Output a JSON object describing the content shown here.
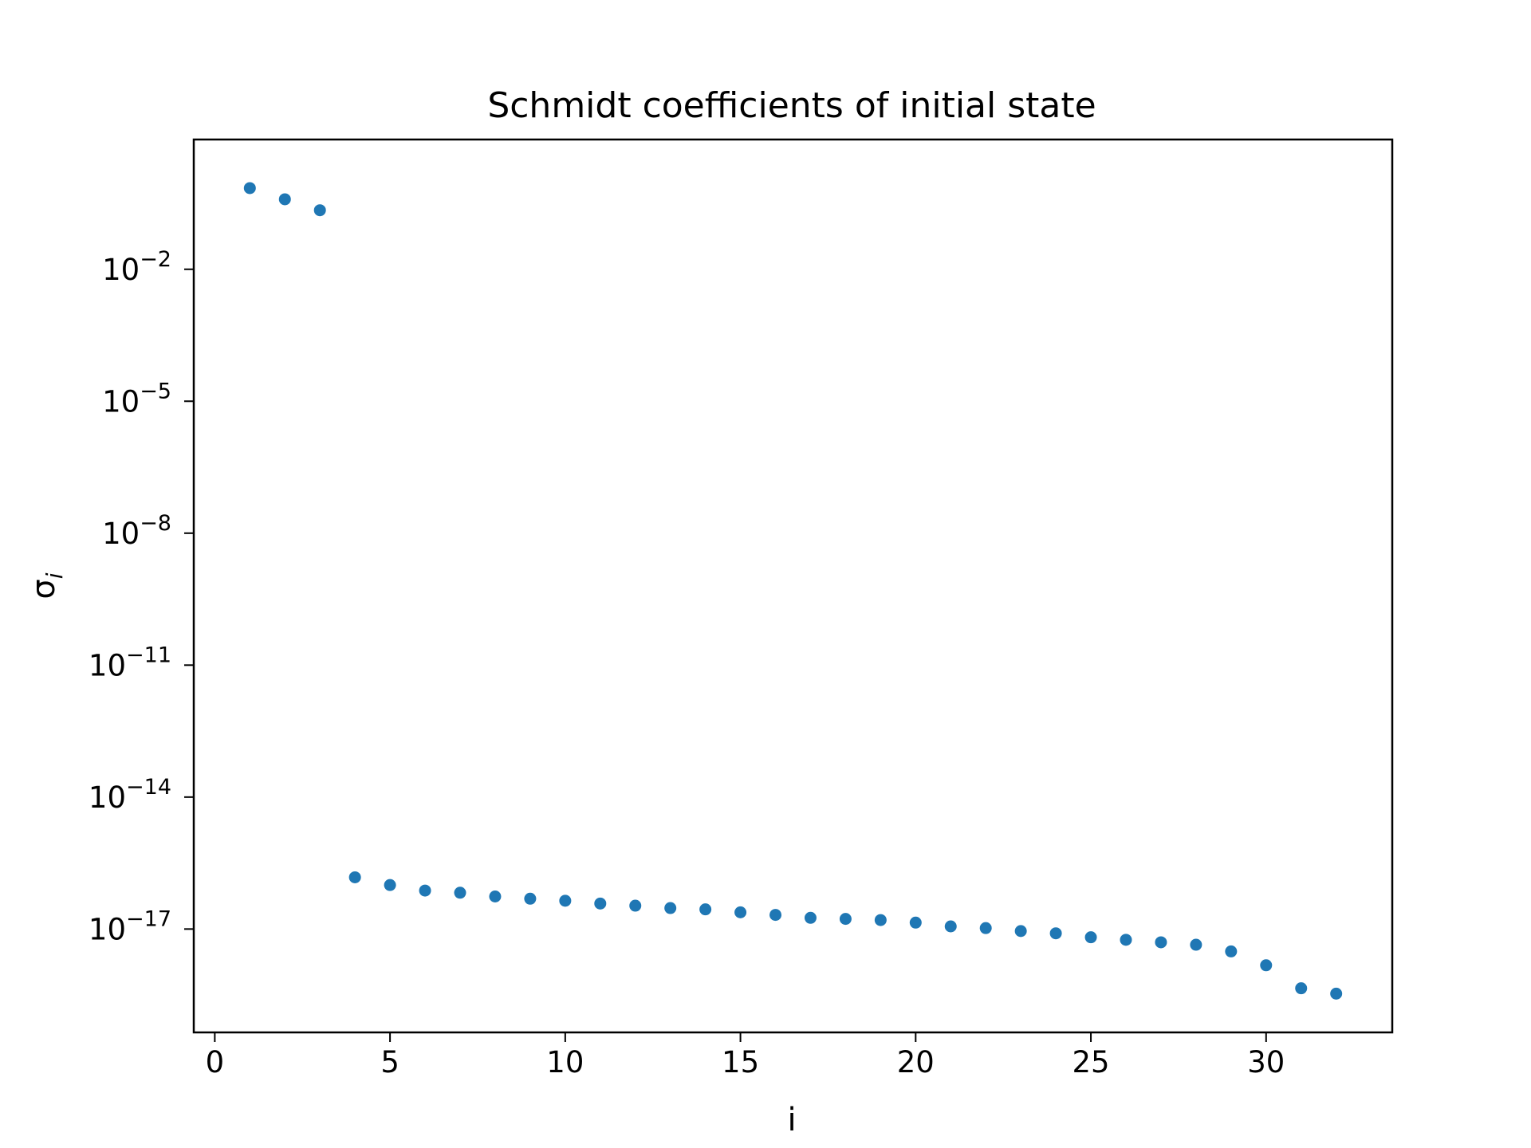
{
  "chart_data": {
    "type": "scatter",
    "title": "Schmidt coefficients of initial state",
    "xlabel": "i",
    "ylabel_symbol": "σ",
    "ylabel_subscript": "i",
    "yscale": "log",
    "xlim": [
      -0.6,
      33.6
    ],
    "ylim_log10": [
      -19.35,
      0.95
    ],
    "xticks": [
      0,
      5,
      10,
      15,
      20,
      25,
      30
    ],
    "yticks": [
      {
        "base": "10",
        "exponent": "−2",
        "log10": -2
      },
      {
        "base": "10",
        "exponent": "−5",
        "log10": -5
      },
      {
        "base": "10",
        "exponent": "−8",
        "log10": -8
      },
      {
        "base": "10",
        "exponent": "−11",
        "log10": -11
      },
      {
        "base": "10",
        "exponent": "−14",
        "log10": -14
      },
      {
        "base": "10",
        "exponent": "−17",
        "log10": -17
      }
    ],
    "grid": false,
    "legend": false,
    "marker_color": "#1f77b4",
    "points": [
      {
        "x": 1,
        "y": 0.7
      },
      {
        "x": 2,
        "y": 0.39
      },
      {
        "x": 3,
        "y": 0.22
      },
      {
        "x": 4,
        "y": 1.5e-16
      },
      {
        "x": 5,
        "y": 1e-16
      },
      {
        "x": 6,
        "y": 7.5e-17
      },
      {
        "x": 7,
        "y": 6.7e-17
      },
      {
        "x": 8,
        "y": 5.5e-17
      },
      {
        "x": 9,
        "y": 4.9e-17
      },
      {
        "x": 10,
        "y": 4.4e-17
      },
      {
        "x": 11,
        "y": 3.8e-17
      },
      {
        "x": 12,
        "y": 3.4e-17
      },
      {
        "x": 13,
        "y": 3e-17
      },
      {
        "x": 14,
        "y": 2.8e-17
      },
      {
        "x": 15,
        "y": 2.4e-17
      },
      {
        "x": 16,
        "y": 2.1e-17
      },
      {
        "x": 17,
        "y": 1.8e-17
      },
      {
        "x": 18,
        "y": 1.7e-17
      },
      {
        "x": 19,
        "y": 1.6e-17
      },
      {
        "x": 20,
        "y": 1.4e-17
      },
      {
        "x": 21,
        "y": 1.15e-17
      },
      {
        "x": 22,
        "y": 1.05e-17
      },
      {
        "x": 23,
        "y": 9e-18
      },
      {
        "x": 24,
        "y": 8e-18
      },
      {
        "x": 25,
        "y": 6.5e-18
      },
      {
        "x": 26,
        "y": 5.7e-18
      },
      {
        "x": 27,
        "y": 5e-18
      },
      {
        "x": 28,
        "y": 4.4e-18
      },
      {
        "x": 29,
        "y": 3.1e-18
      },
      {
        "x": 30,
        "y": 1.5e-18
      },
      {
        "x": 31,
        "y": 4.5e-19
      },
      {
        "x": 32,
        "y": 3.4e-19
      }
    ]
  }
}
